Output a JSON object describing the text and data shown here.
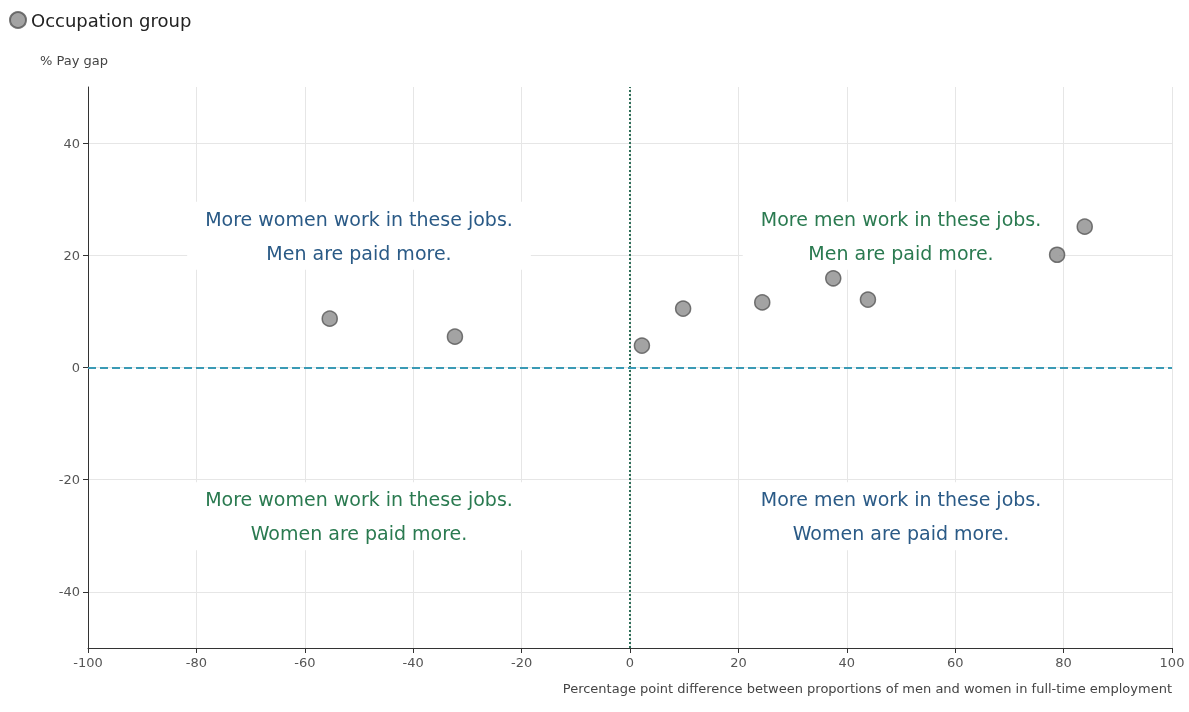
{
  "chart_data": {
    "type": "scatter",
    "xlabel": "Percentage point difference between proportions of men and women in full-time employment",
    "ylabel": "% Pay gap",
    "x": [
      -55.4,
      -32.3,
      2.2,
      9.8,
      24.4,
      37.5,
      43.9,
      78.8,
      83.9
    ],
    "series": [
      {
        "name": "Occupation group",
        "color": "#8c8c8c",
        "values": [
          8.7,
          5.5,
          3.9,
          10.5,
          11.6,
          15.9,
          12.1,
          20.1,
          25.1
        ]
      }
    ],
    "xlim": [
      -100,
      100
    ],
    "xticks": [
      -100,
      -80,
      -60,
      -40,
      -20,
      0,
      20,
      40,
      60,
      80,
      100
    ],
    "ylim": [
      -50,
      50
    ],
    "yticks": [
      -40,
      -20,
      0,
      20,
      40
    ],
    "grid": true,
    "legend": "top left",
    "marker": "circle",
    "ref_lines": [
      {
        "axis": "x",
        "value": 0,
        "color": "#2e6f58",
        "line_style": "dotted"
      },
      {
        "axis": "y",
        "value": 0,
        "color": "#3a9ab5",
        "line_style": "dashed"
      }
    ],
    "annotations": [
      "More women work in these jobs.\nMen are paid more.",
      "More men work in these jobs.\nMen are paid more.",
      "More women work in these jobs.\nWomen are paid more.",
      "More men work in these jobs.\nWomen are paid more."
    ]
  }
}
